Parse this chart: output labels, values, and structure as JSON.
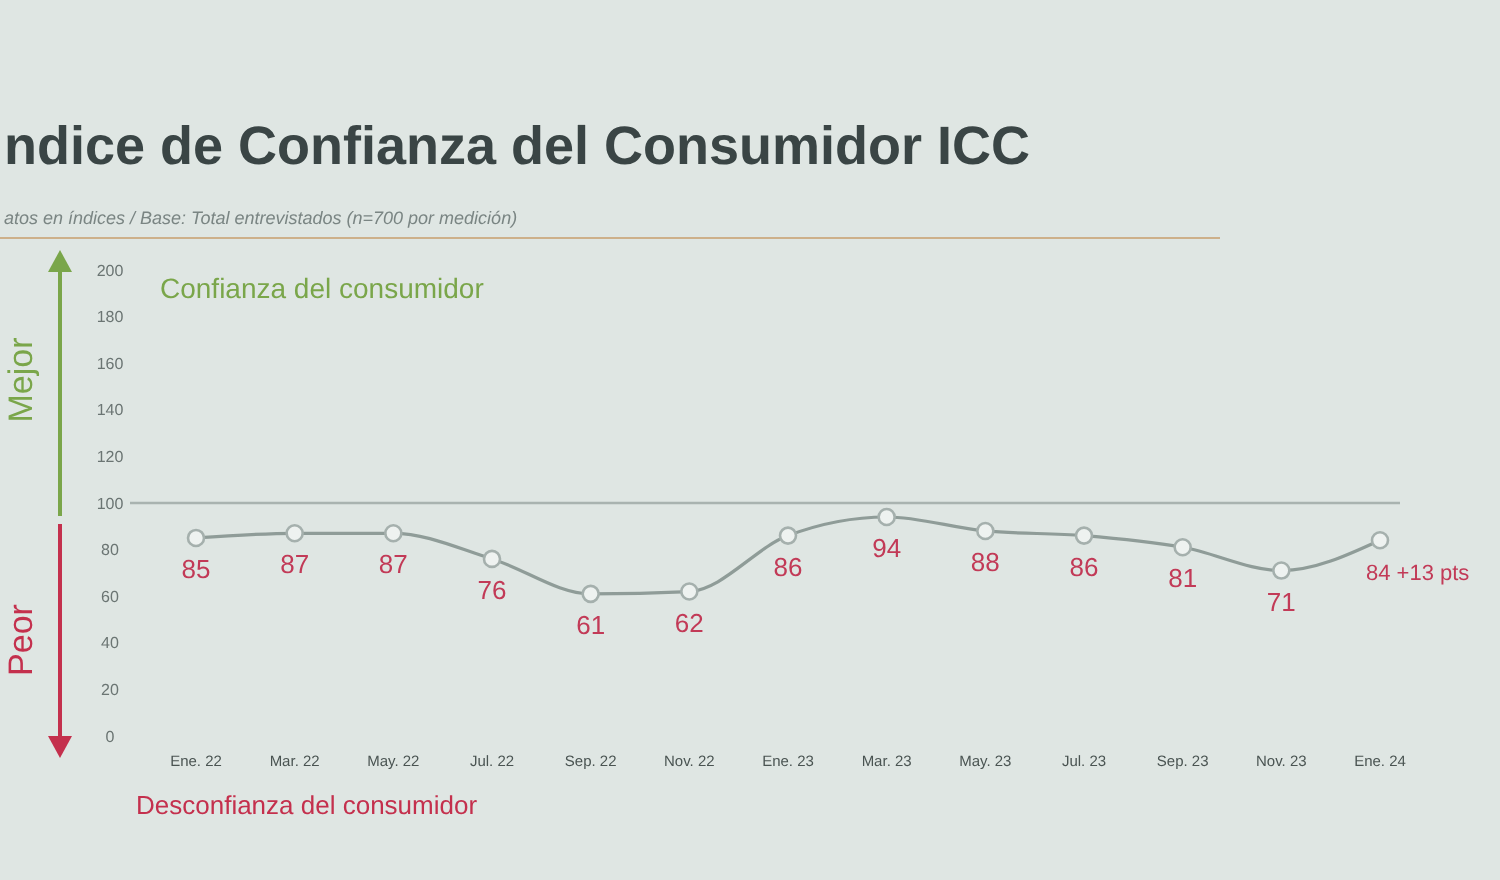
{
  "chart_data": {
    "type": "line",
    "title": "ndice de Confianza del Consumidor ICC",
    "subtitle": "atos en índices / Base: Total entrevistados (n=700 por medición)",
    "categories": [
      "Ene. 22",
      "Mar. 22",
      "May. 22",
      "Jul. 22",
      "Sep. 22",
      "Nov. 22",
      "Ene. 23",
      "Mar. 23",
      "May. 23",
      "Jul. 23",
      "Sep. 23",
      "Nov. 23",
      "Ene. 24"
    ],
    "values": [
      85,
      87,
      87,
      76,
      61,
      62,
      86,
      94,
      88,
      86,
      81,
      71,
      84
    ],
    "value_labels": [
      "85",
      "87",
      "87",
      "76",
      "61",
      "62",
      "86",
      "94",
      "88",
      "86",
      "81",
      "71",
      "84 +13 pts"
    ],
    "color": "#8f9c98",
    "marker": "circle",
    "ylim": [
      0,
      200
    ],
    "yticks": [
      0,
      20,
      40,
      60,
      80,
      100,
      120,
      140,
      160,
      180,
      200
    ],
    "ref_lines": [
      {
        "axis": "y",
        "value": 100,
        "color": "#a9b3b0"
      }
    ],
    "annotations": [
      "Confianza del consumidor",
      "Desconfianza del consumidor",
      "Mejor",
      "Peor"
    ]
  }
}
